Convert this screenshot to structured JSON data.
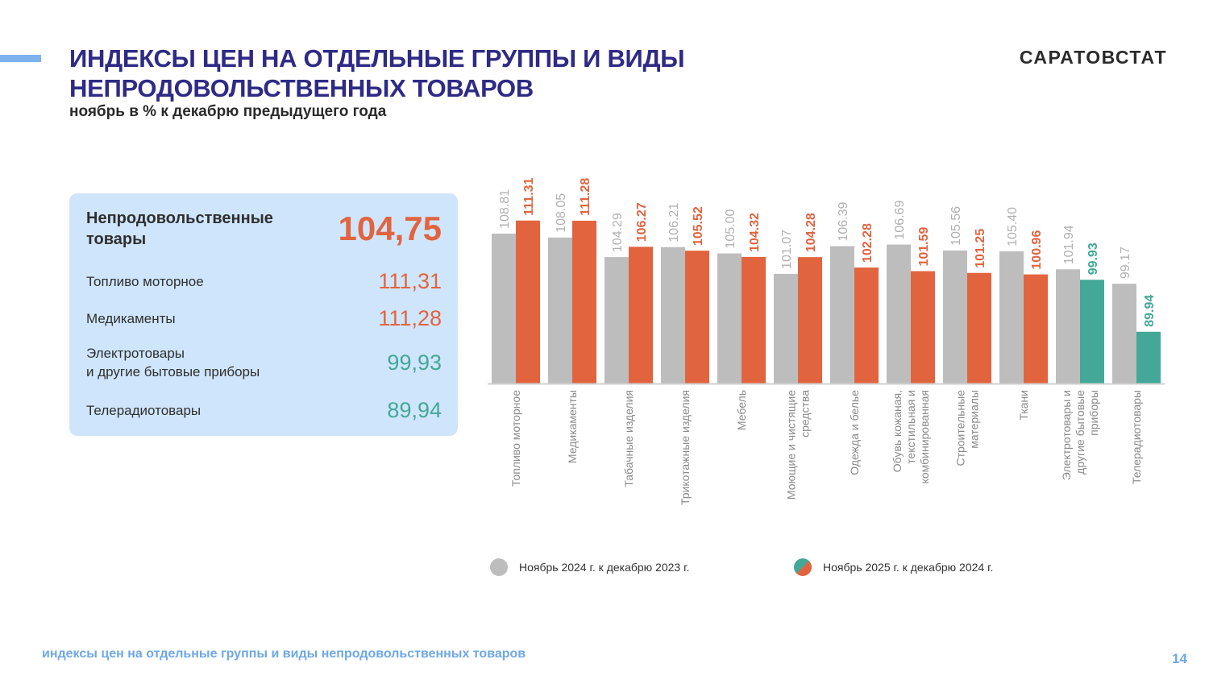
{
  "header": {
    "title_line1": "ИНДЕКСЫ ЦЕН НА ОТДЕЛЬНЫЕ ГРУППЫ И ВИДЫ",
    "title_line2": "НЕПРОДОВОЛЬСТВЕННЫХ ТОВАРОВ",
    "subtitle": "ноябрь в % к декабрю предыдущего года",
    "logo": "САРАТОВСТАТ"
  },
  "summary_panel": {
    "main": {
      "label_line1": "Непродовольственные",
      "label_line2": "товары",
      "value": "104,75"
    },
    "items": [
      {
        "label_line1": "Топливо моторное",
        "label_line2": "",
        "value": "111,31",
        "tone": "orange"
      },
      {
        "label_line1": "Медикаменты",
        "label_line2": "",
        "value": "111,28",
        "tone": "orange"
      },
      {
        "label_line1": "Электротовары",
        "label_line2": "и другие бытовые приборы",
        "value": "99,93",
        "tone": "teal"
      },
      {
        "label_line1": "Телерадиотовары",
        "label_line2": "",
        "value": "89,94",
        "tone": "teal"
      }
    ]
  },
  "colors": {
    "title": "#2e2a86",
    "gray": "#bdbdbd",
    "orange": "#e2643f",
    "teal": "#43a897",
    "gray_label": "#b0b0b0"
  },
  "chart_data": {
    "type": "bar",
    "title": "",
    "xlabel": "",
    "ylabel": "",
    "ylim": [
      80,
      115
    ],
    "grid": false,
    "categories": [
      [
        "Топливо моторное"
      ],
      [
        "Медикаменты"
      ],
      [
        "Табачные изделия"
      ],
      [
        "Трикотажные изделия"
      ],
      [
        "Мебель"
      ],
      [
        "Моющие и чистящие",
        "средства"
      ],
      [
        "Одежда и белье"
      ],
      [
        "Обувь кожаная,",
        "текстильная и",
        "комбинированная"
      ],
      [
        "Строительные",
        "материалы"
      ],
      [
        "Ткани"
      ],
      [
        "Электротовары и",
        "другие бытовые",
        "приборы"
      ],
      [
        "Телерадиотовары"
      ]
    ],
    "series": [
      {
        "name": "Ноябрь 2024 г. к декабрю 2023 г.",
        "values": [
          108.81,
          108.05,
          104.29,
          106.21,
          105.0,
          101.07,
          106.39,
          106.69,
          105.56,
          105.4,
          101.94,
          99.17
        ],
        "labels": [
          "108.81",
          "108.05",
          "104.29",
          "106.21",
          "105.00",
          "101.07",
          "106.39",
          "106.69",
          "105.56",
          "105.40",
          "101.94",
          "99.17"
        ]
      },
      {
        "name": "Ноябрь 2025 г. к декабрю 2024 г.",
        "values": [
          111.31,
          111.28,
          106.27,
          105.52,
          104.32,
          104.28,
          102.28,
          101.59,
          101.25,
          100.96,
          99.93,
          89.94
        ],
        "labels": [
          "111.31",
          "111.28",
          "106.27",
          "105.52",
          "104.32",
          "104.28",
          "102.28",
          "101.59",
          "101.25",
          "100.96",
          "99.93",
          "89.94"
        ]
      }
    ],
    "legend_position": "bottom"
  },
  "footer": {
    "text": "индексы цен на отдельные группы и виды непродовольственных товаров",
    "page": "14"
  }
}
